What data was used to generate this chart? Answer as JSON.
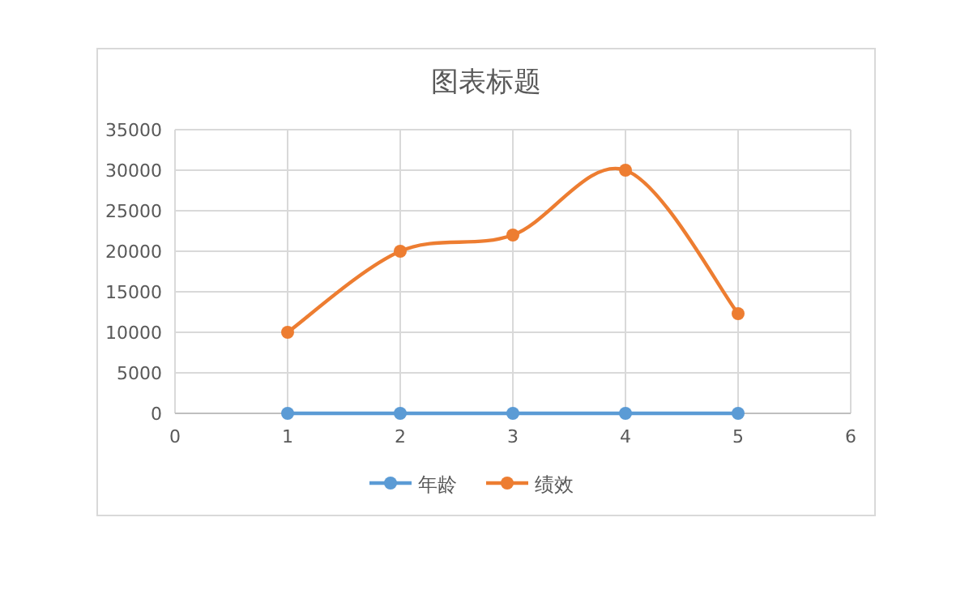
{
  "chart_data": {
    "type": "line",
    "title": "图表标题",
    "x": [
      1,
      2,
      3,
      4,
      5
    ],
    "series": [
      {
        "name": "年龄",
        "color": "#5b9bd5",
        "values": [
          0,
          0,
          0,
          0,
          0
        ]
      },
      {
        "name": "绩效",
        "color": "#ed7d31",
        "values": [
          10000,
          20000,
          22000,
          30000,
          12300
        ]
      }
    ],
    "xlim": [
      0,
      6
    ],
    "xticks": [
      0,
      1,
      2,
      3,
      4,
      5,
      6
    ],
    "ylim": [
      0,
      35000
    ],
    "yticks": [
      0,
      5000,
      10000,
      15000,
      20000,
      25000,
      30000,
      35000
    ],
    "grid": true,
    "legend": "bottom",
    "marker": "circle",
    "line_style": "solid"
  }
}
